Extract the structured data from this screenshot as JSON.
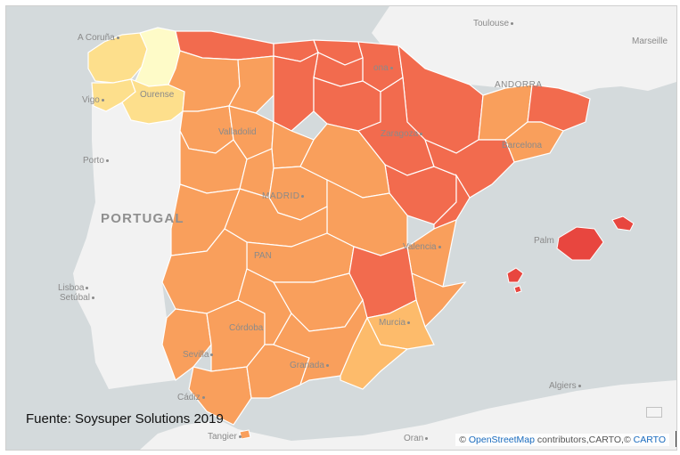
{
  "source_note": "Fuente: Soysuper Solutions 2019",
  "attribution": {
    "prefix": "© ",
    "osm": "OpenStreetMap",
    "middle": " contributors,CARTO,© ",
    "carto": "CARTO"
  },
  "countries": {
    "portugal": "PORTUGAL",
    "andorra": "ANDORRA"
  },
  "cities": {
    "a_coruna": "A Coruña",
    "vigo": "Vigo",
    "ourense": "Ourense",
    "porto": "Porto",
    "lisboa": "Lisboa",
    "setubal": "Setúbal",
    "valladolid": "Valladolid",
    "madrid": "MADRID",
    "zaragoza": "Zaragoza",
    "barcelona": "Barcelona",
    "valencia": "Valencia",
    "palma": "Palm",
    "murcia": "Murcia",
    "cordoba": "Córdoba",
    "sevilla": "Sevilla",
    "granada": "Granada",
    "cadiz": "Cádiz",
    "tangier": "Tangier",
    "algiers": "Algiers",
    "oran": "Oran",
    "toulouse": "Toulouse",
    "marseille": "Marseille",
    "pan": "PAN",
    "ona": "ona"
  },
  "colors": {
    "sea": "#d4dadc",
    "land": "#f2f2f2",
    "lightest": "#fefbc8",
    "light": "#fddf8c",
    "mid_light": "#fdbb6b",
    "mid": "#f99f5c",
    "dark": "#f26b4e",
    "darkest": "#e8463f",
    "border": "#ffffff"
  },
  "legend_levels": [
    "lightest",
    "light",
    "mid_light",
    "mid",
    "dark",
    "darkest"
  ]
}
